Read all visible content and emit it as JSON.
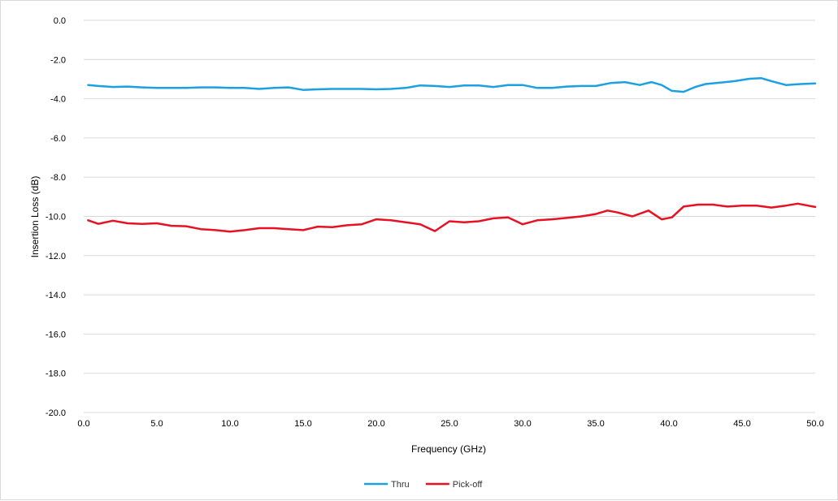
{
  "chart_data": {
    "type": "line",
    "title": "",
    "xlabel": "Frequency (GHz)",
    "ylabel": "Insertion Loss (dB)",
    "xlim": [
      0,
      50
    ],
    "ylim": [
      -20,
      0
    ],
    "x_ticks": [
      "0.0",
      "5.0",
      "10.0",
      "15.0",
      "20.0",
      "25.0",
      "30.0",
      "35.0",
      "40.0",
      "45.0",
      "50.0"
    ],
    "y_ticks": [
      "0.0",
      "-2.0",
      "-4.0",
      "-6.0",
      "-8.0",
      "-10.0",
      "-12.0",
      "-14.0",
      "-16.0",
      "-18.0",
      "-20.0"
    ],
    "grid": "horizontal",
    "legend_position": "bottom-center",
    "series": [
      {
        "name": "Thru",
        "color": "#1ba1e2",
        "x": [
          0.3,
          1,
          2,
          3,
          4,
          5,
          6,
          7,
          8,
          9,
          10,
          11,
          12,
          13,
          14,
          15,
          16,
          17,
          18,
          19,
          20,
          21,
          22,
          23,
          24,
          25,
          26,
          27,
          28,
          29,
          30,
          31,
          32,
          33,
          34,
          35,
          36,
          37,
          38,
          38.8,
          39.5,
          40.2,
          41,
          41.8,
          42.5,
          43.5,
          44.5,
          45.5,
          46.3,
          47,
          48,
          49,
          50
        ],
        "y": [
          -3.3,
          -3.35,
          -3.4,
          -3.38,
          -3.42,
          -3.45,
          -3.45,
          -3.45,
          -3.42,
          -3.42,
          -3.45,
          -3.45,
          -3.5,
          -3.45,
          -3.42,
          -3.55,
          -3.52,
          -3.5,
          -3.5,
          -3.5,
          -3.52,
          -3.5,
          -3.45,
          -3.32,
          -3.35,
          -3.4,
          -3.32,
          -3.32,
          -3.4,
          -3.3,
          -3.3,
          -3.45,
          -3.45,
          -3.38,
          -3.35,
          -3.35,
          -3.2,
          -3.15,
          -3.3,
          -3.15,
          -3.3,
          -3.6,
          -3.65,
          -3.4,
          -3.25,
          -3.18,
          -3.1,
          -2.98,
          -2.95,
          -3.1,
          -3.3,
          -3.25,
          -3.22
        ]
      },
      {
        "name": "Pick-off",
        "color": "#e81123",
        "x": [
          0.3,
          1,
          2,
          3,
          4,
          5,
          6,
          7,
          8,
          9,
          10,
          11,
          12,
          13,
          14,
          15,
          16,
          17,
          18,
          19,
          20,
          21,
          22,
          23,
          24,
          25,
          26,
          27,
          28,
          29,
          30,
          31,
          32,
          33,
          34,
          35,
          35.8,
          36.5,
          37.5,
          38.6,
          39.5,
          40.2,
          41,
          42,
          43,
          44,
          45,
          46,
          47,
          48,
          48.8,
          49.5,
          50
        ],
        "y": [
          -10.2,
          -10.38,
          -10.22,
          -10.35,
          -10.38,
          -10.35,
          -10.48,
          -10.5,
          -10.65,
          -10.7,
          -10.78,
          -10.7,
          -10.6,
          -10.6,
          -10.65,
          -10.7,
          -10.52,
          -10.55,
          -10.45,
          -10.4,
          -10.15,
          -10.2,
          -10.3,
          -10.4,
          -10.75,
          -10.25,
          -10.3,
          -10.25,
          -10.1,
          -10.05,
          -10.4,
          -10.2,
          -10.15,
          -10.08,
          -10.0,
          -9.88,
          -9.7,
          -9.8,
          -10.0,
          -9.7,
          -10.15,
          -10.05,
          -9.5,
          -9.4,
          -9.4,
          -9.5,
          -9.45,
          -9.45,
          -9.55,
          -9.45,
          -9.35,
          -9.45,
          -9.52
        ]
      }
    ]
  }
}
